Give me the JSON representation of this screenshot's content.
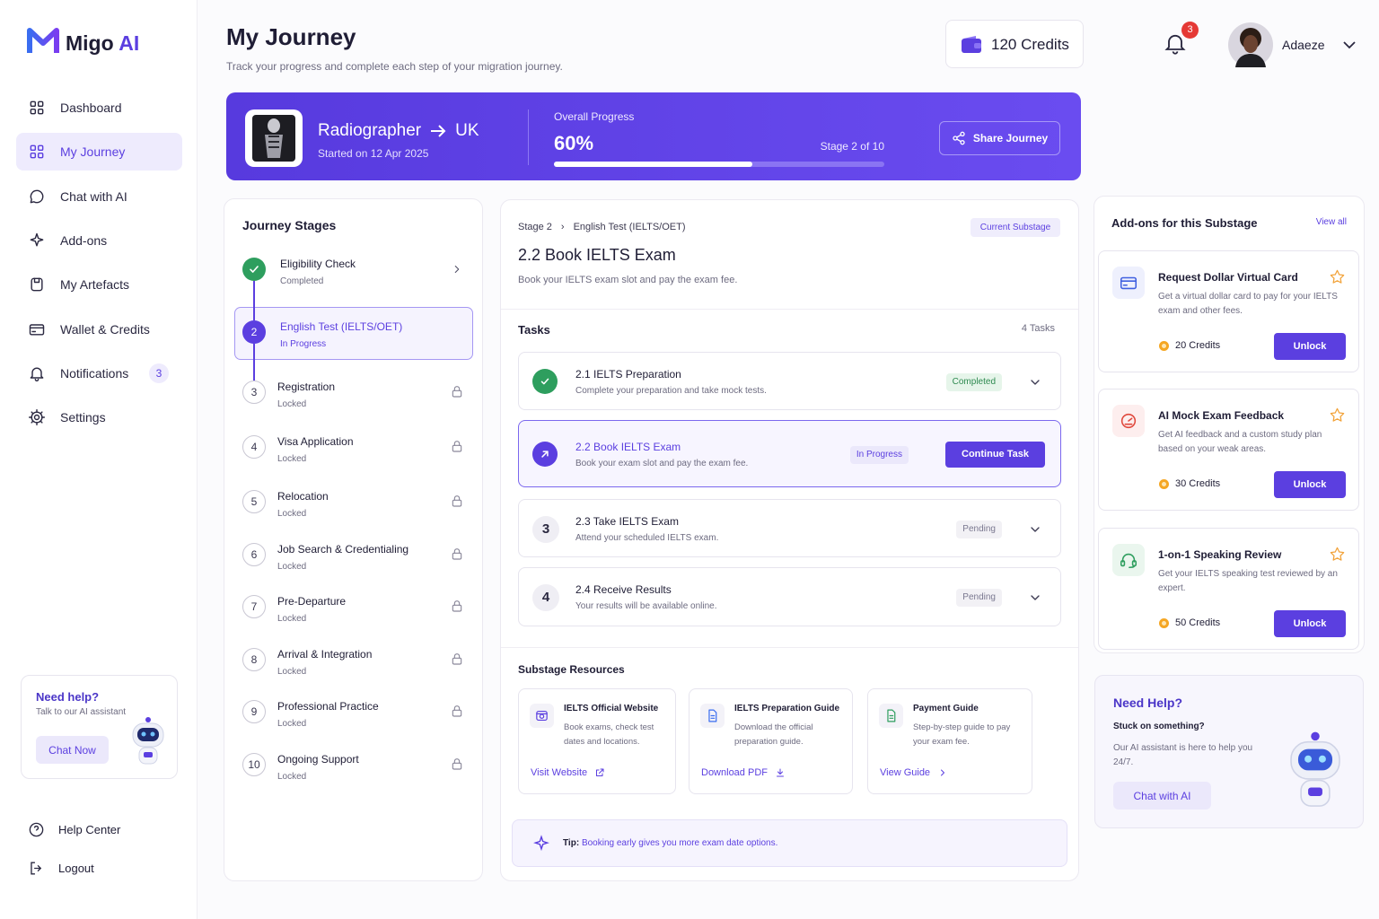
{
  "sidebar": {
    "brand": {
      "name": "Migo",
      "accent": "AI"
    },
    "nav": [
      {
        "label": "Dashboard"
      },
      {
        "label": "My Journey",
        "active": true
      },
      {
        "label": "Chat with AI"
      },
      {
        "label": "Add-ons"
      },
      {
        "label": "My Artefacts"
      },
      {
        "label": "Wallet & Credits"
      },
      {
        "label": "Notifications",
        "badge": "3"
      },
      {
        "label": "Settings"
      }
    ],
    "help": {
      "title": "Need help?",
      "text": "Talk to our AI assistant",
      "button": "Chat Now"
    },
    "footer": [
      "Help Center",
      "Logout"
    ]
  },
  "header": {
    "title": "My Journey",
    "subtitle": "Track your progress and complete each step of your migration journey.",
    "credits": "120 Credits",
    "bell_badge": "3",
    "user": "Adaeze"
  },
  "banner": {
    "role": "Radiographer",
    "destination": "UK",
    "started": "Started on 12 Apr 2025",
    "progress_title": "Overall Progress",
    "progress": {
      "value": 60,
      "label": "60%"
    },
    "stage": "Stage 2 of 10",
    "share": "Share Journey"
  },
  "stages": {
    "title": "Journey Stages",
    "items": [
      {
        "name": "Eligibility Check",
        "status": "Completed"
      },
      {
        "number": "2",
        "name": "English Test (IELTS/OET)",
        "status": "In Progress",
        "active": true
      },
      {
        "number": "3",
        "name": "Registration",
        "status": "Locked"
      },
      {
        "number": "4",
        "name": "Visa Application",
        "status": "Locked"
      },
      {
        "number": "5",
        "name": "Relocation",
        "status": "Locked"
      },
      {
        "number": "6",
        "name": "Job Search & Credentialing",
        "status": "Locked"
      },
      {
        "number": "7",
        "name": "Pre-Departure",
        "status": "Locked"
      },
      {
        "number": "8",
        "name": "Arrival & Integration",
        "status": "Locked"
      },
      {
        "number": "9",
        "name": "Professional Practice",
        "status": "Locked"
      },
      {
        "number": "10",
        "name": "Ongoing Support",
        "status": "Locked"
      }
    ]
  },
  "detail": {
    "breadcrumb": [
      "Stage 2",
      "English Test (IELTS/OET)"
    ],
    "badge": "Current Substage",
    "title": "2.2 Book IELTS Exam",
    "description": "Book your IELTS exam slot and pay the exam fee.",
    "tasks_title": "Tasks",
    "tasks_count": "4 Tasks",
    "tasks": [
      {
        "title": "2.1 IELTS Preparation",
        "text": "Complete your preparation and take mock tests.",
        "status": "Completed"
      },
      {
        "title": "2.2 Book IELTS Exam",
        "text": "Book your exam slot and pay the exam fee.",
        "status": "In Progress",
        "button": "Continue Task",
        "active": true
      },
      {
        "number": "3",
        "title": "2.3 Take IELTS Exam",
        "text": "Attend your scheduled IELTS exam.",
        "status": "Pending"
      },
      {
        "number": "4",
        "title": "2.4 Receive Results",
        "text": "Your results will be available online.",
        "status": "Pending"
      }
    ],
    "resources_title": "Substage Resources",
    "resources": [
      {
        "title": "IELTS Official Website",
        "text": "Book exams, check test dates and locations.",
        "link": "Visit Website"
      },
      {
        "title": "IELTS Preparation Guide",
        "text": "Download the official preparation guide.",
        "link": "Download PDF"
      },
      {
        "title": "Payment Guide",
        "text": "Step-by-step guide to pay your exam fee.",
        "link": "View Guide"
      }
    ],
    "tip": {
      "label": "Tip:",
      "text": "Booking early gives you more exam date options."
    }
  },
  "addons": {
    "title": "Add-ons for this Substage",
    "view_all": "View all",
    "items": [
      {
        "title": "Request Dollar Virtual Card",
        "text": "Get a virtual dollar card to pay for your IELTS exam and other fees.",
        "credits": "20 Credits",
        "button": "Unlock"
      },
      {
        "title": "AI Mock Exam Feedback",
        "text": "Get AI feedback and a custom study plan based on your weak areas.",
        "credits": "30 Credits",
        "button": "Unlock"
      },
      {
        "title": "1-on-1 Speaking Review",
        "text": "Get your IELTS speaking test reviewed by an expert.",
        "credits": "50 Credits",
        "button": "Unlock"
      }
    ]
  },
  "help": {
    "title": "Need Help?",
    "subtitle": "Stuck on something?",
    "text": "Our AI assistant is here to help you 24/7.",
    "button": "Chat with AI"
  }
}
